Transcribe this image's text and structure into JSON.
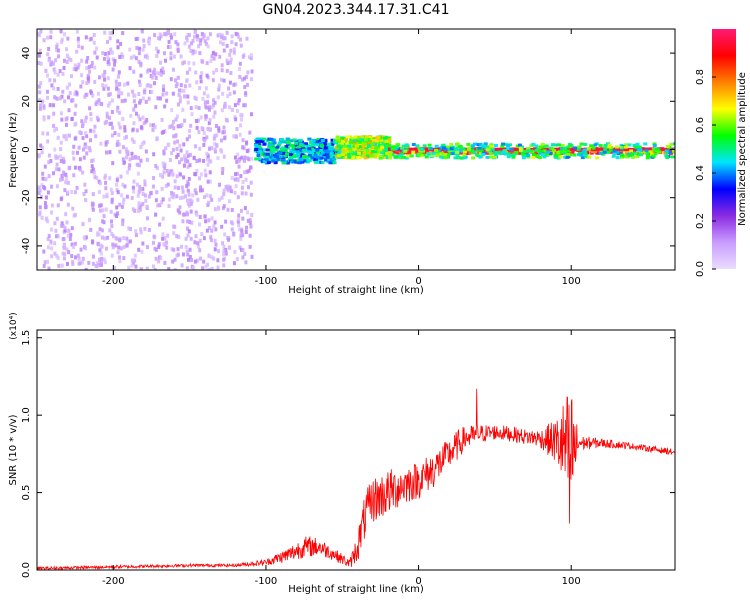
{
  "figure_title": "GN04.2023.344.17.31.C41",
  "chart_data": [
    {
      "type": "heatmap",
      "xlabel": "Height of straight line (km)",
      "ylabel": "Frequency (Hz)",
      "xlim": [
        -250,
        168
      ],
      "ylim": [
        -50,
        50
      ],
      "xticks": [
        -200,
        -100,
        0,
        100
      ],
      "xtick_labels": [
        "-200",
        "-100",
        "0",
        "100"
      ],
      "yticks": [
        -40,
        -20,
        0,
        20,
        40
      ],
      "ytick_labels": [
        "-40",
        "-20",
        "0",
        "20",
        "40"
      ],
      "colorbar": {
        "label": "Normalized spectral amplitude",
        "range": [
          0,
          1
        ],
        "ticks": [
          0.0,
          0.2,
          0.4,
          0.6,
          0.8
        ],
        "tick_labels": [
          "0.0",
          "0.2",
          "0.4",
          "0.6",
          "0.8"
        ],
        "colors": [
          "#e9ddff",
          "#c99cff",
          "#8a2be2",
          "#0000ff",
          "#00e5ff",
          "#00ff00",
          "#ffff00",
          "#ff8000",
          "#ff0000",
          "#ff1a75"
        ]
      },
      "bands": [
        {
          "x": [
            -250,
            -110
          ],
          "fmin": -50,
          "fmax": 50,
          "level": 0.1
        },
        {
          "x": [
            -108,
            -55
          ],
          "fmin": -5,
          "fmax": 5,
          "level": 0.45
        },
        {
          "x": [
            -55,
            -20
          ],
          "fmin": -3,
          "fmax": 6,
          "level": 0.65
        },
        {
          "x": [
            -20,
            168
          ],
          "fmin": -1,
          "fmax": 1,
          "level": 0.95
        },
        {
          "x": [
            -20,
            168
          ],
          "fmin": -3,
          "fmax": 3,
          "level": 0.55
        }
      ]
    },
    {
      "type": "line",
      "xlabel": "Height of straight line (km)",
      "ylabel": "SNR (10 * v/v)",
      "y_multiplier": "(x10⁴)",
      "xlim": [
        -250,
        168
      ],
      "ylim": [
        0,
        1.55
      ],
      "xticks": [
        -200,
        -100,
        0,
        100
      ],
      "xtick_labels": [
        "-200",
        "-100",
        "0",
        "100"
      ],
      "yticks": [
        0.0,
        0.5,
        1.0,
        1.5
      ],
      "ytick_labels": [
        "0.0",
        "0.5",
        "1.0",
        "1.5"
      ],
      "color": "#ff0000",
      "envelope": {
        "x": [
          -250,
          -200,
          -150,
          -120,
          -100,
          -85,
          -75,
          -65,
          -55,
          -45,
          -40,
          -35,
          -30,
          -20,
          -10,
          0,
          10,
          20,
          25,
          30,
          40,
          50,
          60,
          70,
          80,
          90,
          95,
          100,
          105,
          120,
          140,
          168
        ],
        "mid": [
          0.01,
          0.02,
          0.03,
          0.03,
          0.05,
          0.1,
          0.15,
          0.15,
          0.1,
          0.04,
          0.15,
          0.35,
          0.45,
          0.5,
          0.55,
          0.58,
          0.65,
          0.75,
          0.8,
          0.85,
          0.88,
          0.89,
          0.88,
          0.86,
          0.85,
          0.83,
          0.8,
          0.75,
          0.82,
          0.82,
          0.8,
          0.76
        ],
        "amp": [
          0.01,
          0.01,
          0.01,
          0.01,
          0.02,
          0.05,
          0.07,
          0.06,
          0.04,
          0.03,
          0.1,
          0.15,
          0.15,
          0.15,
          0.13,
          0.12,
          0.12,
          0.1,
          0.1,
          0.08,
          0.06,
          0.05,
          0.05,
          0.05,
          0.06,
          0.15,
          0.3,
          0.45,
          0.05,
          0.03,
          0.02,
          0.02
        ]
      },
      "peaks": [
        {
          "x": 38,
          "y": 1.17
        },
        {
          "x": 99,
          "y": 1.55
        },
        {
          "x": 99,
          "y": 0.3
        }
      ]
    }
  ]
}
